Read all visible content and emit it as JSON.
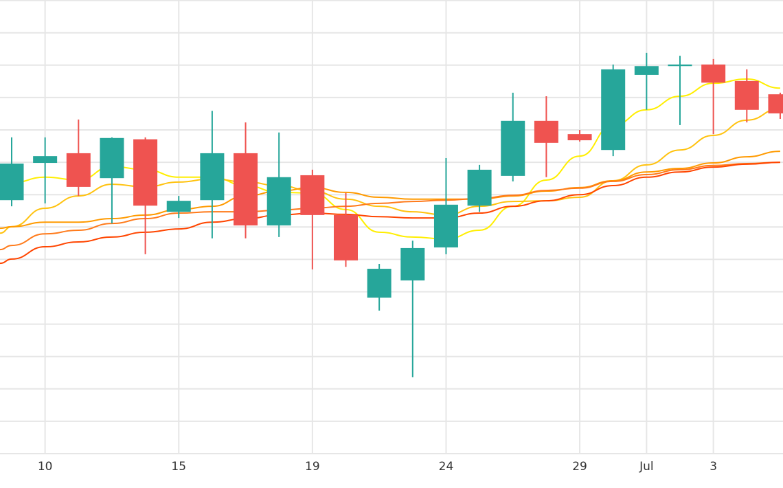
{
  "chart_data": {
    "type": "candlestick",
    "title": "",
    "xlabel": "",
    "ylabel": "",
    "ylim": [
      0,
      140
    ],
    "grid": true,
    "y_grid_step": 10,
    "x_ticks": [
      {
        "index": 1,
        "label": "10"
      },
      {
        "index": 5,
        "label": "15"
      },
      {
        "index": 9,
        "label": "19"
      },
      {
        "index": 13,
        "label": "24"
      },
      {
        "index": 17,
        "label": "29"
      },
      {
        "index": 19,
        "label": "Jul"
      },
      {
        "index": 21,
        "label": "3"
      }
    ],
    "colors": {
      "up": "#26a69a",
      "down": "#ef5350",
      "grid": "#e6e6e6"
    },
    "candles": [
      {
        "o": 78.3,
        "h": 97.7,
        "l": 76.4,
        "c": 89.6
      },
      {
        "o": 89.8,
        "h": 97.7,
        "l": 77.3,
        "c": 91.9
      },
      {
        "o": 92.8,
        "h": 103.2,
        "l": 79.6,
        "c": 82.4
      },
      {
        "o": 85.1,
        "h": 97.7,
        "l": 71.1,
        "c": 97.5
      },
      {
        "o": 97.1,
        "h": 97.7,
        "l": 61.6,
        "c": 76.6
      },
      {
        "o": 74.7,
        "h": 79.6,
        "l": 72.8,
        "c": 78.1
      },
      {
        "o": 78.3,
        "h": 105.9,
        "l": 66.5,
        "c": 92.8
      },
      {
        "o": 92.8,
        "h": 102.3,
        "l": 66.5,
        "c": 70.5
      },
      {
        "o": 70.5,
        "h": 99.2,
        "l": 66.9,
        "c": 85.4
      },
      {
        "o": 86.0,
        "h": 87.7,
        "l": 56.9,
        "c": 73.7
      },
      {
        "o": 73.7,
        "h": 80.5,
        "l": 57.7,
        "c": 59.7
      },
      {
        "o": 48.2,
        "h": 58.6,
        "l": 44.2,
        "c": 57.1
      },
      {
        "o": 53.5,
        "h": 65.8,
        "l": 23.6,
        "c": 63.5
      },
      {
        "o": 63.7,
        "h": 91.3,
        "l": 61.6,
        "c": 76.9
      },
      {
        "o": 76.6,
        "h": 89.2,
        "l": 74.7,
        "c": 87.7
      },
      {
        "o": 85.8,
        "h": 111.5,
        "l": 84.1,
        "c": 102.8
      },
      {
        "o": 102.8,
        "h": 110.4,
        "l": 85.4,
        "c": 96.0
      },
      {
        "o": 98.7,
        "h": 100.0,
        "l": 96.4,
        "c": 96.8
      },
      {
        "o": 93.8,
        "h": 120.2,
        "l": 91.9,
        "c": 118.7
      },
      {
        "o": 117.0,
        "h": 123.8,
        "l": 106.2,
        "c": 119.7
      },
      {
        "o": 119.7,
        "h": 122.9,
        "l": 101.5,
        "c": 120.2
      },
      {
        "o": 120.2,
        "h": 121.9,
        "l": 98.7,
        "c": 114.6
      },
      {
        "o": 115.1,
        "h": 118.7,
        "l": 102.3,
        "c": 106.2
      },
      {
        "o": 111.0,
        "h": 111.5,
        "l": 103.4,
        "c": 105.1
      }
    ],
    "series": [
      {
        "name": "ma-1",
        "color": "#ffee00",
        "values": [
          83.7,
          85.4,
          84.5,
          88.7,
          87.7,
          85.4,
          85.4,
          82.8,
          80.7,
          80.5,
          75.4,
          68.4,
          66.9,
          66.3,
          69.0,
          76.4,
          84.5,
          91.9,
          101.5,
          106.2,
          110.4,
          114.4,
          115.7,
          112.9
        ]
      },
      {
        "name": "ma-2",
        "color": "#ffc20e",
        "values": [
          70.1,
          75.8,
          79.6,
          83.2,
          82.4,
          83.9,
          84.9,
          83.9,
          82.8,
          81.1,
          78.6,
          76.4,
          74.7,
          73.7,
          76.4,
          77.9,
          78.1,
          79.2,
          84.3,
          89.2,
          93.8,
          98.3,
          103.0,
          106.6
        ]
      },
      {
        "name": "ma-3",
        "color": "#ff9a00",
        "values": [
          70.1,
          71.5,
          71.5,
          72.6,
          73.7,
          75.4,
          76.4,
          79.6,
          81.1,
          82.2,
          80.7,
          79.2,
          78.6,
          78.6,
          78.6,
          79.6,
          81.1,
          82.2,
          84.3,
          87.0,
          88.1,
          89.8,
          91.7,
          93.4
        ]
      },
      {
        "name": "ma-4",
        "color": "#ff7a1a",
        "values": [
          64.3,
          67.9,
          69.0,
          71.1,
          72.6,
          74.3,
          74.7,
          74.7,
          75.2,
          75.8,
          76.4,
          77.3,
          77.9,
          78.3,
          78.8,
          79.8,
          81.3,
          82.0,
          84.1,
          86.2,
          87.7,
          89.0,
          89.6,
          90.0
        ]
      },
      {
        "name": "ma-5",
        "color": "#ff4500",
        "values": [
          60.1,
          63.9,
          65.4,
          66.9,
          68.4,
          69.4,
          71.5,
          72.6,
          73.7,
          74.3,
          73.9,
          73.2,
          72.8,
          72.8,
          74.3,
          76.4,
          78.1,
          80.0,
          82.8,
          85.4,
          87.0,
          88.5,
          89.4,
          90.0
        ]
      }
    ]
  }
}
